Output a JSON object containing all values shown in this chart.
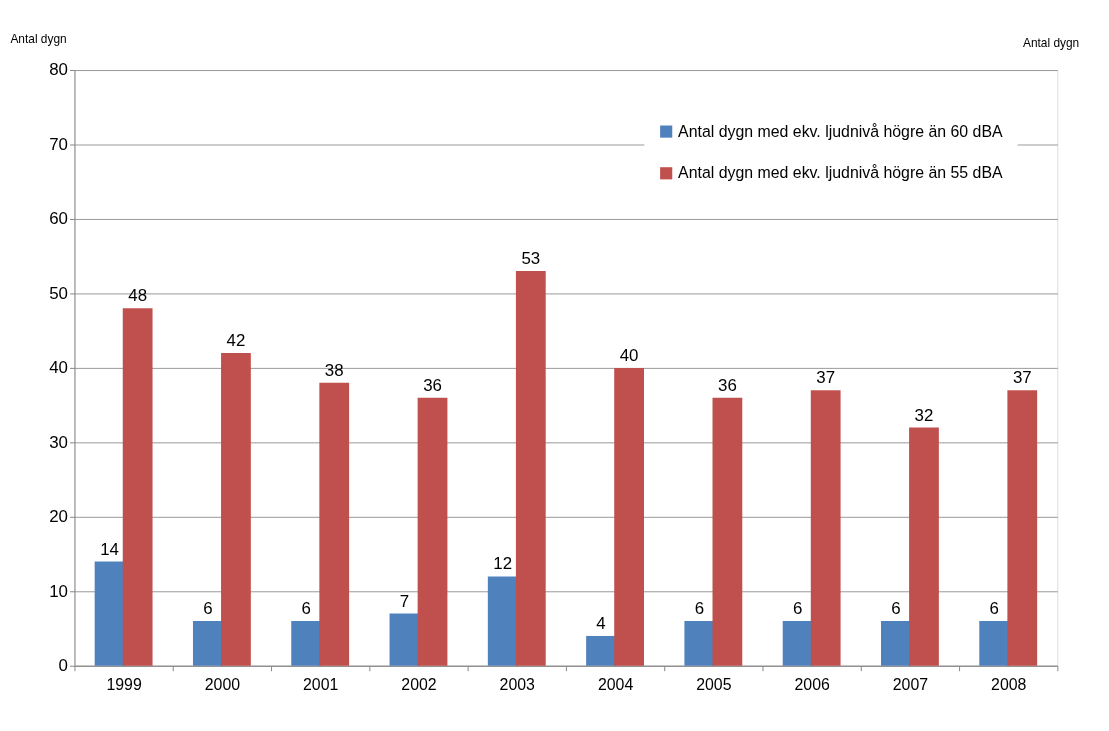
{
  "chart_data": {
    "type": "bar",
    "ylabel": "Antal  dygn",
    "y2label": "Antal dygn",
    "categories": [
      "1999",
      "2000",
      "2001",
      "2002",
      "2003",
      "2004",
      "2005",
      "2006",
      "2007",
      "2008"
    ],
    "series": [
      {
        "name": "Antal dygn med ekv. ljudnivå högre än 60 dBA",
        "color": "#4f81bd",
        "values": [
          14,
          6,
          6,
          7,
          12,
          4,
          6,
          6,
          6,
          6
        ]
      },
      {
        "name": "Antal dygn med ekv. ljudnivå högre än 55 dBA",
        "color": "#c0504d",
        "values": [
          48,
          42,
          38,
          36,
          53,
          40,
          36,
          37,
          32,
          37
        ]
      }
    ],
    "ylim": [
      0,
      80
    ],
    "yticks": [
      0,
      10,
      20,
      30,
      40,
      50,
      60,
      70,
      80
    ],
    "grid": "y",
    "legend": "top right",
    "data_labels": true
  }
}
